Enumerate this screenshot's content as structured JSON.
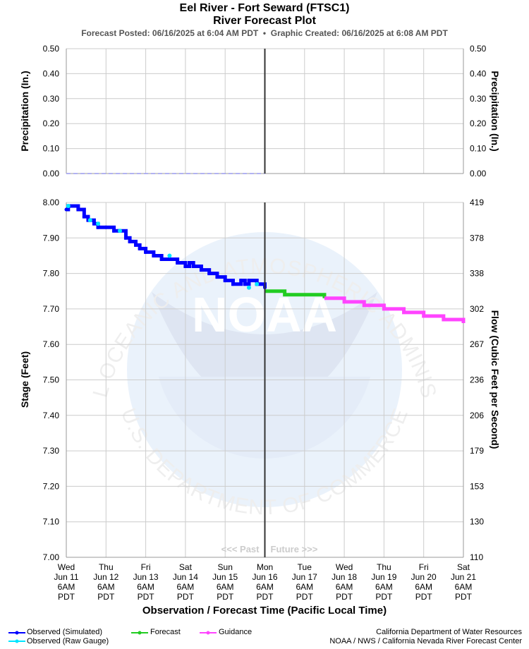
{
  "header": {
    "title": "Eel River - Fort Seward (FTSC1)",
    "subtitle": "River Forecast Plot",
    "posted_label": "Forecast Posted: 06/16/2025 at 6:04 AM PDT",
    "created_label": "Graphic Created: 06/16/2025 at 6:08 AM PDT"
  },
  "chart_data": [
    {
      "type": "line",
      "panel": "precipitation",
      "ylabel_left": "Precipitation (In.)",
      "ylabel_right": "Precipitation (In.)",
      "ylim": [
        0,
        0.5
      ],
      "yticks": [
        "0.00",
        "0.10",
        "0.20",
        "0.30",
        "0.40",
        "0.50"
      ],
      "grid": true,
      "series": [
        {
          "values": [
            0,
            0,
            0,
            0,
            0,
            0
          ]
        }
      ]
    },
    {
      "type": "line",
      "panel": "stage",
      "ylabel_left": "Stage (Feet)",
      "ylabel_right": "Flow (Cubic Feet per Second)",
      "xlabel": "Observation / Forecast Time (Pacific Local Time)",
      "ylim": [
        7.0,
        8.0
      ],
      "yticks": [
        "7.00",
        "7.10",
        "7.20",
        "7.30",
        "7.40",
        "7.50",
        "7.60",
        "7.70",
        "7.80",
        "7.90",
        "8.00"
      ],
      "flow_ticks": [
        "110",
        "130",
        "153",
        "179",
        "206",
        "236",
        "267",
        "302",
        "338",
        "378",
        "419"
      ],
      "x_ticks": [
        [
          "Wed",
          "Jun 11",
          "6AM",
          "PDT"
        ],
        [
          "Thu",
          "Jun 12",
          "6AM",
          "PDT"
        ],
        [
          "Fri",
          "Jun 13",
          "6AM",
          "PDT"
        ],
        [
          "Sat",
          "Jun 14",
          "6AM",
          "PDT"
        ],
        [
          "Sun",
          "Jun 15",
          "6AM",
          "PDT"
        ],
        [
          "Mon",
          "Jun 16",
          "6AM",
          "PDT"
        ],
        [
          "Tue",
          "Jun 17",
          "6AM",
          "PDT"
        ],
        [
          "Wed",
          "Jun 18",
          "6AM",
          "PDT"
        ],
        [
          "Thu",
          "Jun 19",
          "6AM",
          "PDT"
        ],
        [
          "Fri",
          "Jun 20",
          "6AM",
          "PDT"
        ],
        [
          "Sat",
          "Jun 21",
          "6AM",
          "PDT"
        ]
      ],
      "xlim_days": [
        0,
        10
      ],
      "now_day": 5,
      "past_label": "<<< Past",
      "future_label": "Future >>>",
      "grid": true,
      "series": [
        {
          "name": "Observed (Simulated)",
          "color": "#0000ff",
          "x_days": [
            0,
            0.05,
            0.3,
            0.45,
            0.55,
            0.7,
            0.8,
            1.0,
            1.2,
            1.3,
            1.5,
            1.6,
            1.75,
            1.85,
            2.0,
            2.2,
            2.4,
            2.6,
            2.8,
            3.0,
            3.1,
            3.2,
            3.4,
            3.6,
            3.8,
            4.0,
            4.2,
            4.4,
            4.5,
            4.6,
            4.8,
            4.9,
            5.0
          ],
          "values": [
            7.98,
            7.99,
            7.98,
            7.96,
            7.95,
            7.94,
            7.93,
            7.93,
            7.92,
            7.92,
            7.9,
            7.89,
            7.88,
            7.87,
            7.86,
            7.85,
            7.84,
            7.84,
            7.83,
            7.82,
            7.83,
            7.82,
            7.81,
            7.8,
            7.79,
            7.78,
            7.77,
            7.78,
            7.77,
            7.78,
            7.77,
            7.77,
            7.76
          ]
        },
        {
          "name": "Observed (Raw Gauge)",
          "color": "#00e5ff",
          "x_days": [
            0.05,
            0.6,
            0.8,
            1.35,
            2.6,
            4.6,
            4.8
          ],
          "values": [
            7.99,
            7.95,
            7.94,
            7.92,
            7.85,
            7.76,
            7.77
          ]
        },
        {
          "name": "Forecast",
          "color": "#22cc22",
          "x_days": [
            5.0,
            5.5,
            6.0,
            6.5
          ],
          "values": [
            7.75,
            7.74,
            7.74,
            7.73
          ]
        },
        {
          "name": "Guidance",
          "color": "#ff44ff",
          "x_days": [
            6.5,
            7.0,
            7.5,
            8.0,
            8.5,
            9.0,
            9.5,
            10.0
          ],
          "values": [
            7.73,
            7.72,
            7.71,
            7.7,
            7.69,
            7.68,
            7.67,
            7.66
          ]
        }
      ]
    }
  ],
  "legend": {
    "observed_simulated": "Observed (Simulated)",
    "observed_raw": "Observed (Raw Gauge)",
    "forecast": "Forecast",
    "guidance": "Guidance"
  },
  "footer": {
    "line1": "California Department of Water Resources",
    "line2": "NOAA / NWS / California Nevada River Forecast Center"
  },
  "watermark": {
    "top_text": "NATIONAL OCEANIC AND ATMOSPHERIC ADMINISTRATION",
    "bottom_text": "U.S. DEPARTMENT OF COMMERCE",
    "center_text": "NOAA"
  }
}
